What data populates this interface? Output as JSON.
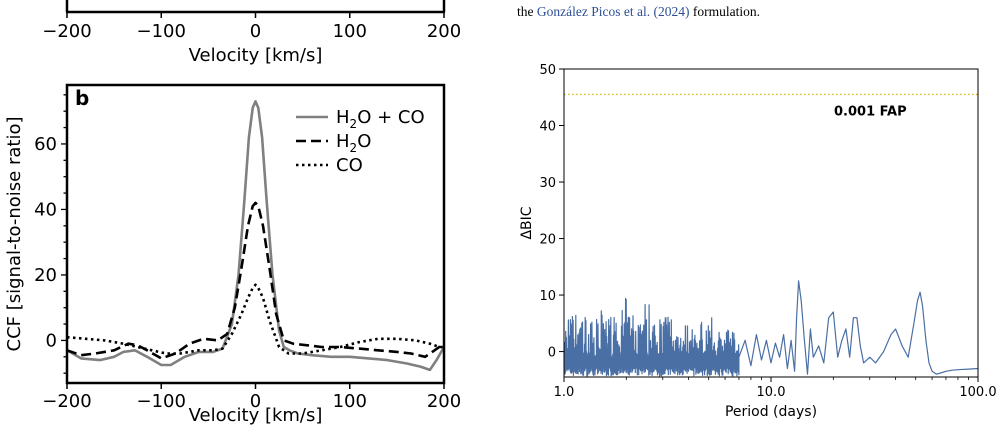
{
  "caption": {
    "prefix": "the ",
    "reference": "González Picos et al. (2024)",
    "suffix": " formulation."
  },
  "chart_data": [
    {
      "panel": "a (bottom edge only)",
      "type": "line",
      "xlabel": "Velocity [km/s]",
      "xlim": [
        -200,
        200
      ],
      "x_ticks": [
        -200,
        -100,
        0,
        100,
        200
      ],
      "x_tick_labels": [
        "−200",
        "−100",
        "0",
        "100",
        "200"
      ]
    },
    {
      "panel": "b",
      "type": "line",
      "panel_label": "b",
      "xlabel": "Velocity [km/s]",
      "ylabel": "CCF [signal-to-noise ratio]",
      "xlim": [
        -200,
        200
      ],
      "ylim": [
        -13,
        78
      ],
      "x_ticks": [
        -200,
        -100,
        0,
        100,
        200
      ],
      "x_tick_labels": [
        "−200",
        "−100",
        "0",
        "100",
        "200"
      ],
      "y_ticks": [
        0,
        20,
        40,
        60
      ],
      "y_tick_labels": [
        "0",
        "20",
        "40",
        "60"
      ],
      "legend_position": "top-right",
      "series": [
        {
          "name": "H2O + CO",
          "legend_label": {
            "pre": "H",
            "sub": "2",
            "post": "O + CO"
          },
          "color": "#808080",
          "dash": "solid",
          "x": [
            -200,
            -185,
            -165,
            -150,
            -140,
            -128,
            -115,
            -100,
            -90,
            -75,
            -60,
            -45,
            -35,
            -25,
            -18,
            -12,
            -7,
            -3,
            0,
            3,
            7,
            12,
            18,
            25,
            30,
            36,
            45,
            60,
            80,
            100,
            120,
            140,
            160,
            175,
            185,
            192,
            200
          ],
          "y": [
            -3,
            -5.5,
            -6,
            -5,
            -3.5,
            -3,
            -5,
            -7.5,
            -7.5,
            -5,
            -3.5,
            -3.5,
            -2.5,
            5,
            20,
            42,
            62,
            71,
            73,
            71,
            62,
            42,
            20,
            3,
            -2,
            -3,
            -4,
            -4.5,
            -5,
            -5,
            -5.5,
            -6,
            -7,
            -8,
            -9,
            -6,
            -2
          ]
        },
        {
          "name": "H2O",
          "legend_label": {
            "pre": "H",
            "sub": "2",
            "post": "O"
          },
          "color": "#000000",
          "dash": "dashed",
          "x": [
            -200,
            -185,
            -170,
            -150,
            -135,
            -125,
            -115,
            -100,
            -85,
            -70,
            -55,
            -40,
            -30,
            -22,
            -15,
            -8,
            -3,
            0,
            3,
            8,
            15,
            22,
            30,
            40,
            55,
            70,
            90,
            110,
            130,
            150,
            165,
            180,
            190,
            200
          ],
          "y": [
            -3,
            -4.5,
            -4,
            -3,
            -1,
            -1.5,
            -3,
            -5.5,
            -4,
            -1,
            0.5,
            0,
            2,
            10,
            22,
            35,
            41,
            42,
            41,
            35,
            22,
            8,
            0,
            -1,
            -1.5,
            -2,
            -2,
            -2.5,
            -3,
            -3.5,
            -4,
            -5,
            -3,
            -1
          ]
        },
        {
          "name": "CO",
          "legend_label": {
            "pre": "CO",
            "sub": "",
            "post": ""
          },
          "color": "#000000",
          "dash": "dotted",
          "x": [
            -200,
            -180,
            -160,
            -140,
            -125,
            -110,
            -95,
            -80,
            -60,
            -45,
            -35,
            -25,
            -15,
            -8,
            -3,
            0,
            3,
            8,
            15,
            25,
            35,
            50,
            70,
            90,
            110,
            130,
            150,
            170,
            185,
            195,
            200
          ],
          "y": [
            1,
            0.5,
            0,
            -1,
            -2,
            -3,
            -4,
            -4,
            -3,
            -3,
            -2.5,
            2,
            8,
            13,
            16,
            17,
            16,
            13,
            6,
            -2,
            -4,
            -4,
            -3,
            -2,
            -0.5,
            0.5,
            0.5,
            0,
            -1,
            -2,
            -2
          ]
        }
      ]
    },
    {
      "panel": "periodogram",
      "type": "line",
      "xlabel": "Period (days)",
      "ylabel": "ΔBIC",
      "xscale": "log",
      "xlim": [
        1.0,
        100.0
      ],
      "ylim": [
        -4.5,
        50
      ],
      "x_ticks": [
        1.0,
        10.0,
        100.0
      ],
      "x_tick_labels": [
        "1.0",
        "10.0",
        "100.0"
      ],
      "y_ticks": [
        0,
        10,
        20,
        30,
        40,
        50
      ],
      "y_tick_labels": [
        "0",
        "10",
        "20",
        "30",
        "40",
        "50"
      ],
      "hline": {
        "y": 45.5,
        "label": "0.001 FAP",
        "color": "#d4b52a",
        "style": "dotted"
      },
      "series": [
        {
          "color": "#4a6fa5",
          "envelope": [
            [
              1.0,
              6
            ],
            [
              1.2,
              8
            ],
            [
              1.4,
              5
            ],
            [
              1.6,
              9
            ],
            [
              1.8,
              5
            ],
            [
              2.0,
              10
            ],
            [
              2.2,
              7
            ],
            [
              2.5,
              10
            ],
            [
              2.8,
              7
            ],
            [
              3.2,
              8
            ],
            [
              3.6,
              6
            ],
            [
              4.0,
              5.5
            ],
            [
              4.5,
              5
            ],
            [
              5.0,
              6.5
            ],
            [
              5.5,
              5
            ],
            [
              6.0,
              4.5
            ],
            [
              7.0,
              3.5
            ]
          ],
          "x": [
            7.0,
            7.5,
            8.0,
            8.5,
            9.0,
            9.5,
            10.0,
            10.5,
            11.0,
            11.5,
            12.0,
            12.5,
            13.0,
            13.3,
            13.6,
            14.0,
            14.5,
            15.0,
            15.5,
            16.0,
            17.0,
            18.0,
            19.0,
            20.0,
            21.0,
            22.0,
            23.0,
            24.0,
            25.0,
            26.0,
            27.0,
            28.0,
            30.0,
            32.0,
            35.0,
            38.0,
            40.0,
            43.0,
            46.0,
            49.0,
            51.0,
            52.5,
            54.0,
            56.0,
            58.0,
            60.0,
            63.0,
            66.0,
            70.0,
            75.0,
            80.0,
            90.0,
            100.0
          ],
          "y": [
            -1,
            2,
            -2.5,
            3,
            -1.5,
            2,
            -2,
            1.5,
            -1,
            3,
            -3,
            2,
            -3.5,
            6,
            12.5,
            9,
            2,
            -4,
            4,
            -1,
            1,
            -2,
            6,
            7,
            -1,
            2,
            4,
            -1,
            6,
            6,
            1,
            -2,
            -1,
            -2,
            0,
            3,
            4,
            1,
            -1,
            5,
            9,
            10.5,
            8,
            2,
            -2,
            -3.5,
            -4,
            -3.8,
            -3.5,
            -3.3,
            -3.2,
            -3.1,
            -3
          ]
        }
      ]
    }
  ]
}
